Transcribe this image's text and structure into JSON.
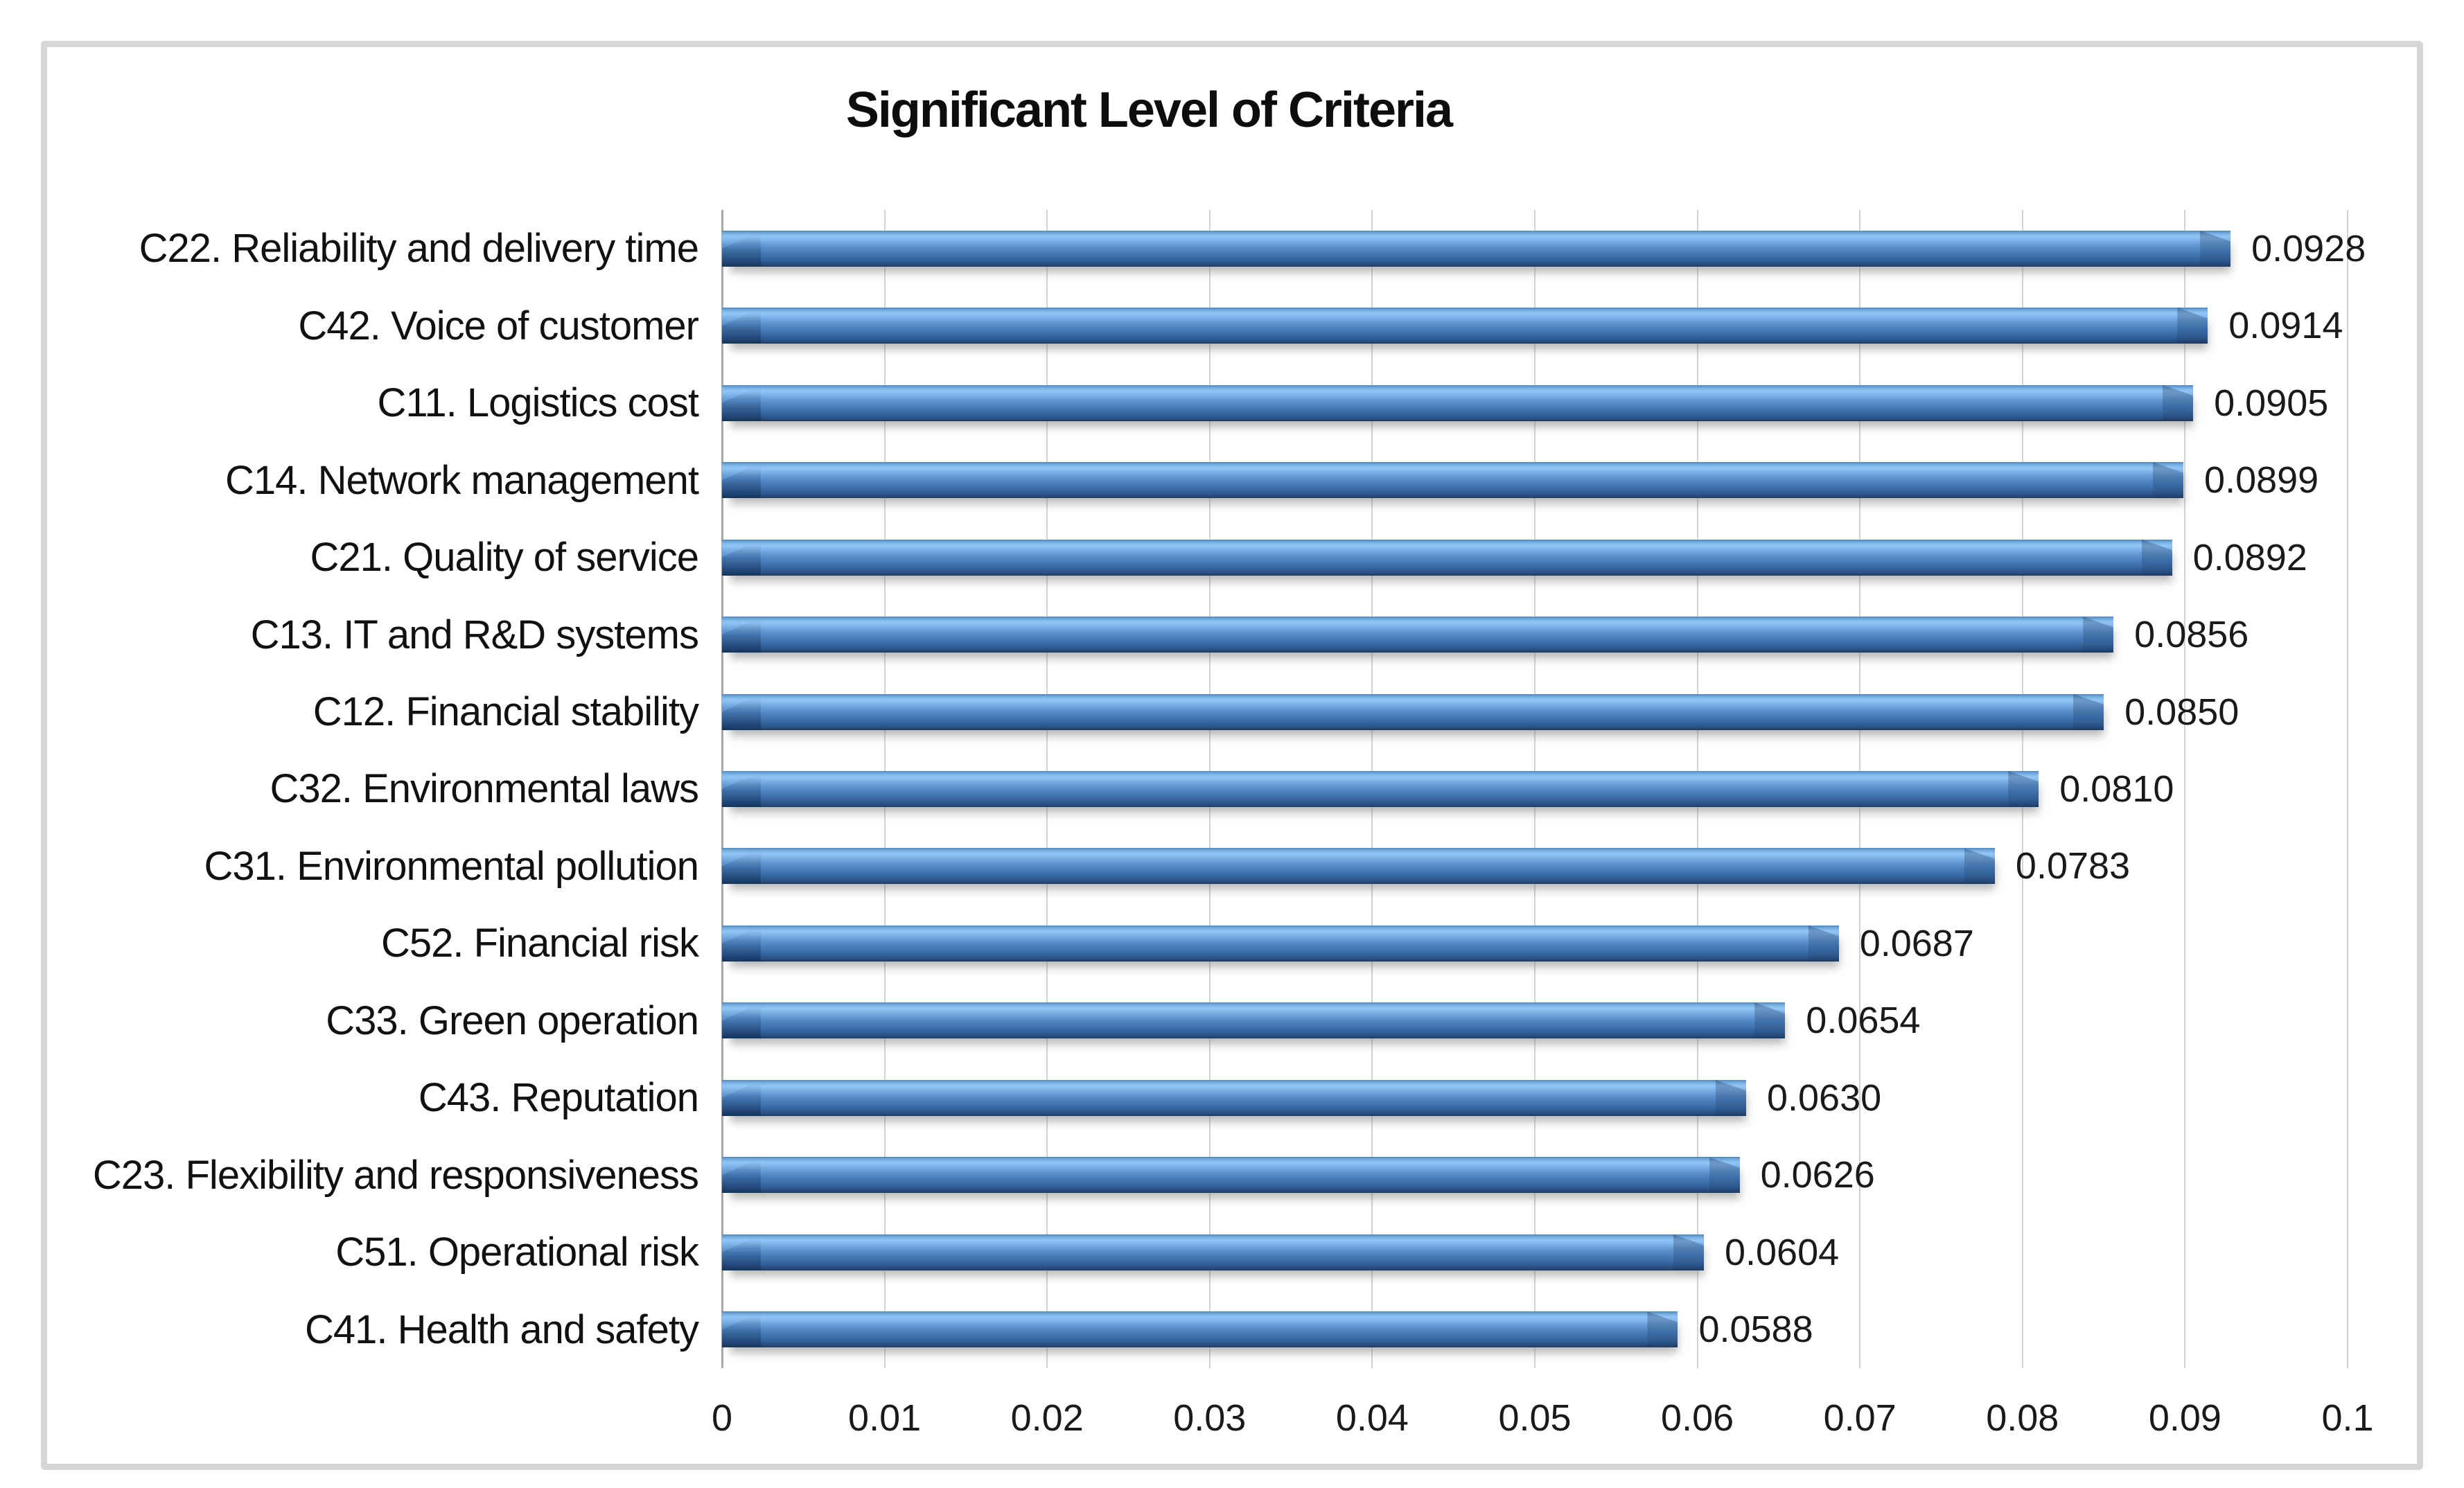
{
  "figure": {
    "title": "Significant Level of Criteria"
  },
  "chart_data": {
    "type": "bar",
    "orientation": "horizontal",
    "title": "Significant Level of Criteria",
    "categories": [
      "C22. Reliability and delivery time",
      "C42. Voice of customer",
      "C11. Logistics cost",
      "C14. Network management",
      "C21. Quality of service",
      "C13. IT and R&D systems",
      "C12. Financial stability",
      "C32. Environmental laws",
      "C31. Environmental pollution",
      "C52. Financial risk",
      "C33. Green operation",
      "C43. Reputation",
      "C23. Flexibility and responsiveness",
      "C51. Operational risk",
      "C41. Health and safety"
    ],
    "values": [
      0.0928,
      0.0914,
      0.0905,
      0.0899,
      0.0892,
      0.0856,
      0.085,
      0.081,
      0.0783,
      0.0687,
      0.0654,
      0.063,
      0.0626,
      0.0604,
      0.0588
    ],
    "value_labels": [
      "0.0928",
      "0.0914",
      "0.0905",
      "0.0899",
      "0.0892",
      "0.0856",
      "0.0850",
      "0.0810",
      "0.0783",
      "0.0687",
      "0.0654",
      "0.0630",
      "0.0626",
      "0.0604",
      "0.0588"
    ],
    "x_ticks": [
      "0",
      "0.01",
      "0.02",
      "0.03",
      "0.04",
      "0.05",
      "0.06",
      "0.07",
      "0.08",
      "0.09",
      "0.1"
    ],
    "xlim": [
      0,
      0.1
    ],
    "xlabel": "",
    "ylabel": "",
    "grid": "vertical",
    "legend": "none",
    "data_labels": "outside-end",
    "bar_color": "#4d83c1",
    "bar_highlight": "#92c5f4",
    "bar_dark": "#1d3c62",
    "gridline_color": "#d2d2d2",
    "axis_color": "#a9a9a9",
    "frame_color": "#d6d6d6",
    "text_color": "#111111"
  }
}
